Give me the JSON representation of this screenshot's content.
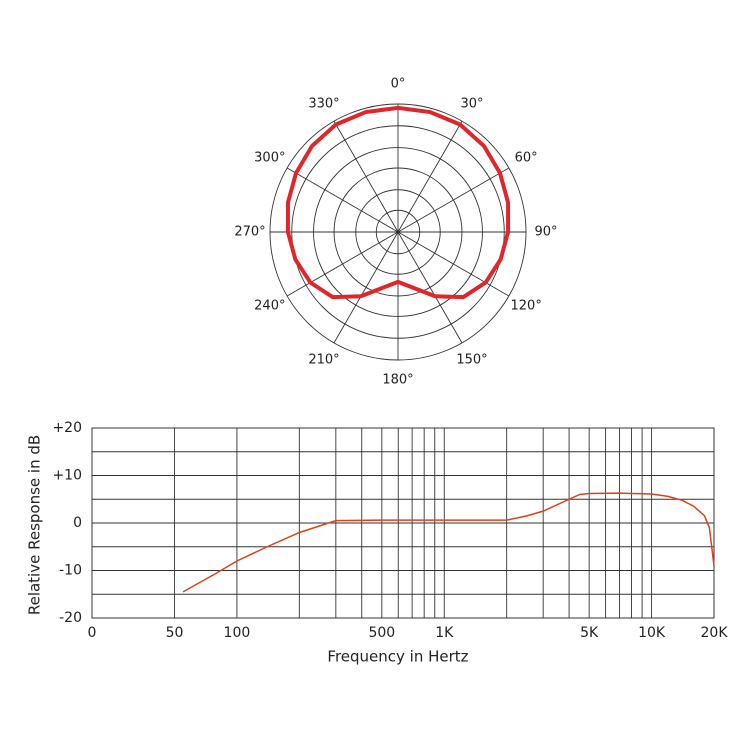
{
  "chart_data": [
    {
      "type": "polar",
      "theta": [
        0,
        15,
        30,
        45,
        60,
        75,
        90,
        105,
        120,
        135,
        150,
        165,
        180,
        195,
        210,
        225,
        240,
        255,
        270,
        285,
        300,
        315,
        330,
        345
      ],
      "series": [
        {
          "color": "#e0262b",
          "values": [
            0.97,
            0.97,
            0.97,
            0.95,
            0.92,
            0.89,
            0.86,
            0.83,
            0.79,
            0.72,
            0.58,
            0.45,
            0.39,
            0.45,
            0.58,
            0.72,
            0.79,
            0.83,
            0.86,
            0.89,
            0.92,
            0.95,
            0.97,
            0.97
          ]
        }
      ],
      "rlim": [
        0,
        1
      ],
      "rgrid": [
        0.17,
        0.33,
        0.5,
        0.66,
        0.83,
        1
      ],
      "thetaticks": [
        {
          "value": 0,
          "label": "0°"
        },
        {
          "value": 30,
          "label": "30°"
        },
        {
          "value": 60,
          "label": "60°"
        },
        {
          "value": 90,
          "label": "90°"
        },
        {
          "value": 120,
          "label": "120°"
        },
        {
          "value": 150,
          "label": "150°"
        },
        {
          "value": 180,
          "label": "180°"
        },
        {
          "value": 210,
          "label": "210°"
        },
        {
          "value": 240,
          "label": "240°"
        },
        {
          "value": 270,
          "label": "270°"
        },
        {
          "value": 300,
          "label": "300°"
        },
        {
          "value": 330,
          "label": "330°"
        }
      ]
    },
    {
      "type": "line",
      "x_label": "Frequency in Hertz",
      "y_label": "Relative Response in dB",
      "x_log": true,
      "x": [
        55,
        80,
        100,
        140,
        200,
        300,
        500,
        1000,
        2000,
        2500,
        3000,
        4000,
        4500,
        5000,
        7000,
        10000,
        12000,
        14000,
        16000,
        18000,
        19000,
        20000
      ],
      "series": [
        {
          "color": "#e0401a",
          "values": [
            -14.5,
            -10.5,
            -8,
            -5,
            -2,
            0.5,
            0.6,
            0.6,
            0.6,
            1.5,
            2.5,
            5,
            6,
            6.2,
            6.3,
            6.1,
            5.6,
            4.8,
            3.5,
            1.5,
            -1,
            -9
          ]
        }
      ],
      "xlim": [
        20,
        20000
      ],
      "ylim": [
        -20,
        20
      ],
      "xticks": [
        {
          "value": 20,
          "label": "0"
        },
        50,
        100,
        500,
        {
          "value": 1000,
          "label": "1K"
        },
        {
          "value": 5000,
          "label": "5K"
        },
        {
          "value": 10000,
          "label": "10K"
        },
        {
          "value": 20000,
          "label": "20K"
        }
      ],
      "yticks": [
        {
          "value": 20,
          "label": "+20"
        },
        {
          "value": 10,
          "label": "+10"
        },
        0,
        -10,
        -20
      ],
      "xgrid": [
        50,
        100,
        200,
        300,
        400,
        500,
        600,
        700,
        800,
        900,
        1000,
        2000,
        3000,
        4000,
        5000,
        6000,
        7000,
        8000,
        9000,
        10000,
        20000
      ],
      "ygrid": [
        -20,
        -15,
        -10,
        -5,
        0,
        5,
        10,
        15,
        20
      ]
    }
  ]
}
